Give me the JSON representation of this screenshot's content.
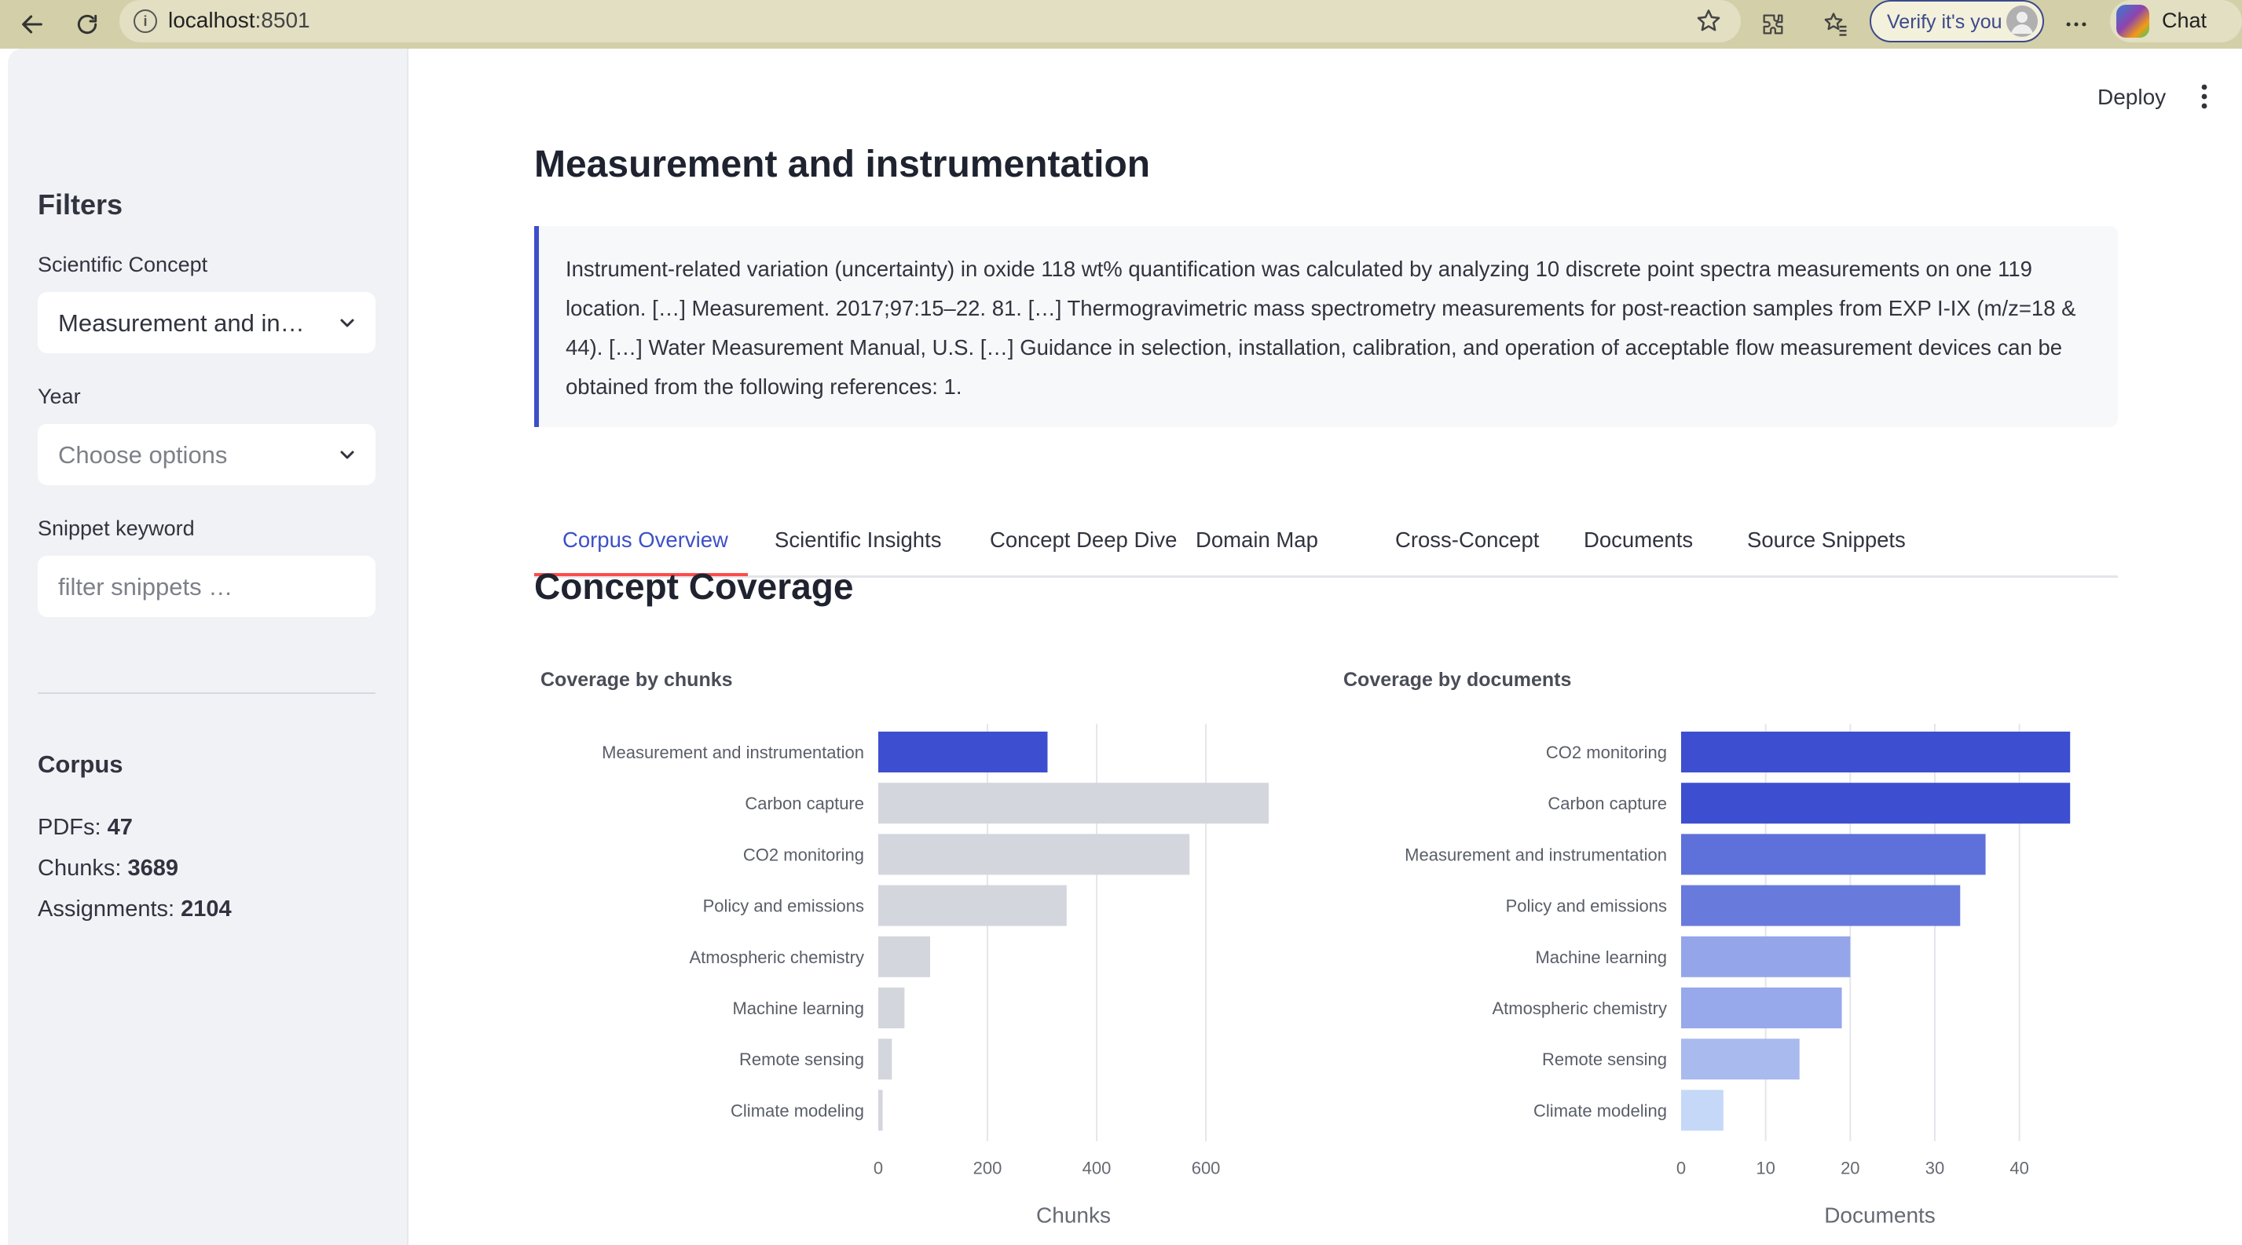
{
  "browser": {
    "url_host": "localhost",
    "url_port": ":8501",
    "verify_label": "Verify it's you",
    "chat_label": "Chat"
  },
  "header": {
    "deploy_label": "Deploy"
  },
  "sidebar": {
    "title": "Filters",
    "concept_label": "Scientific Concept",
    "concept_value": "Measurement and in…",
    "year_label": "Year",
    "year_placeholder": "Choose options",
    "snippet_label": "Snippet keyword",
    "snippet_placeholder": "filter snippets …",
    "corpus_title": "Corpus",
    "stats": [
      {
        "label": "PDFs:",
        "value": "47"
      },
      {
        "label": "Chunks:",
        "value": "3689"
      },
      {
        "label": "Assignments:",
        "value": "2104"
      }
    ]
  },
  "main": {
    "title": "Measurement and instrumentation",
    "quote": "Instrument-related variation (uncertainty) in oxide 118 wt% quantification was calculated by analyzing 10 discrete point spectra measurements on one 119 location. […] Measurement. 2017;97:15–22. 81. […] Thermogravimetric mass spectrometry measurements for post-reaction samples from EXP I-IX (m/z=18 & 44). […] Water Measurement Manual, U.S. […] Guidance in selection, installation, calibration, and operation of acceptable flow measurement devices can be obtained from the following references: 1.",
    "tabs": [
      {
        "label": "Corpus Overview",
        "active": true
      },
      {
        "label": "Scientific Insights"
      },
      {
        "label": "Concept Deep Dive"
      },
      {
        "label": "Domain Map"
      },
      {
        "label": "Cross-Concept"
      },
      {
        "label": "Documents"
      },
      {
        "label": "Source Snippets"
      }
    ],
    "section_title": "Concept Coverage"
  },
  "chart_data": [
    {
      "type": "bar",
      "orientation": "horizontal",
      "title": "Coverage by chunks",
      "xlabel": "Chunks",
      "ylabel": "",
      "categories": [
        "Measurement and instrumentation",
        "Carbon capture",
        "CO2 monitoring",
        "Policy and emissions",
        "Atmospheric chemistry",
        "Machine learning",
        "Remote sensing",
        "Climate modeling"
      ],
      "values": [
        310,
        715,
        570,
        345,
        95,
        48,
        25,
        8
      ],
      "xlim": [
        0,
        715
      ],
      "xticks": [
        0,
        200,
        400,
        600
      ],
      "highlight": "Measurement and instrumentation",
      "colors": {
        "highlight": "#3d4fd0",
        "other": "#d3d6dc"
      },
      "grid": true
    },
    {
      "type": "bar",
      "orientation": "horizontal",
      "title": "Coverage by documents",
      "xlabel": "Documents",
      "ylabel": "",
      "categories": [
        "CO2 monitoring",
        "Carbon capture",
        "Measurement and instrumentation",
        "Policy and emissions",
        "Machine learning",
        "Atmospheric chemistry",
        "Remote sensing",
        "Climate modeling"
      ],
      "values": [
        46,
        46,
        36,
        33,
        20,
        19,
        14,
        5
      ],
      "xlim": [
        0,
        47
      ],
      "xticks": [
        0,
        10,
        20,
        30,
        40
      ],
      "colors": {
        "scale_low": "#c6d8f7",
        "scale_high": "#3d4fd0"
      },
      "grid": true
    }
  ]
}
